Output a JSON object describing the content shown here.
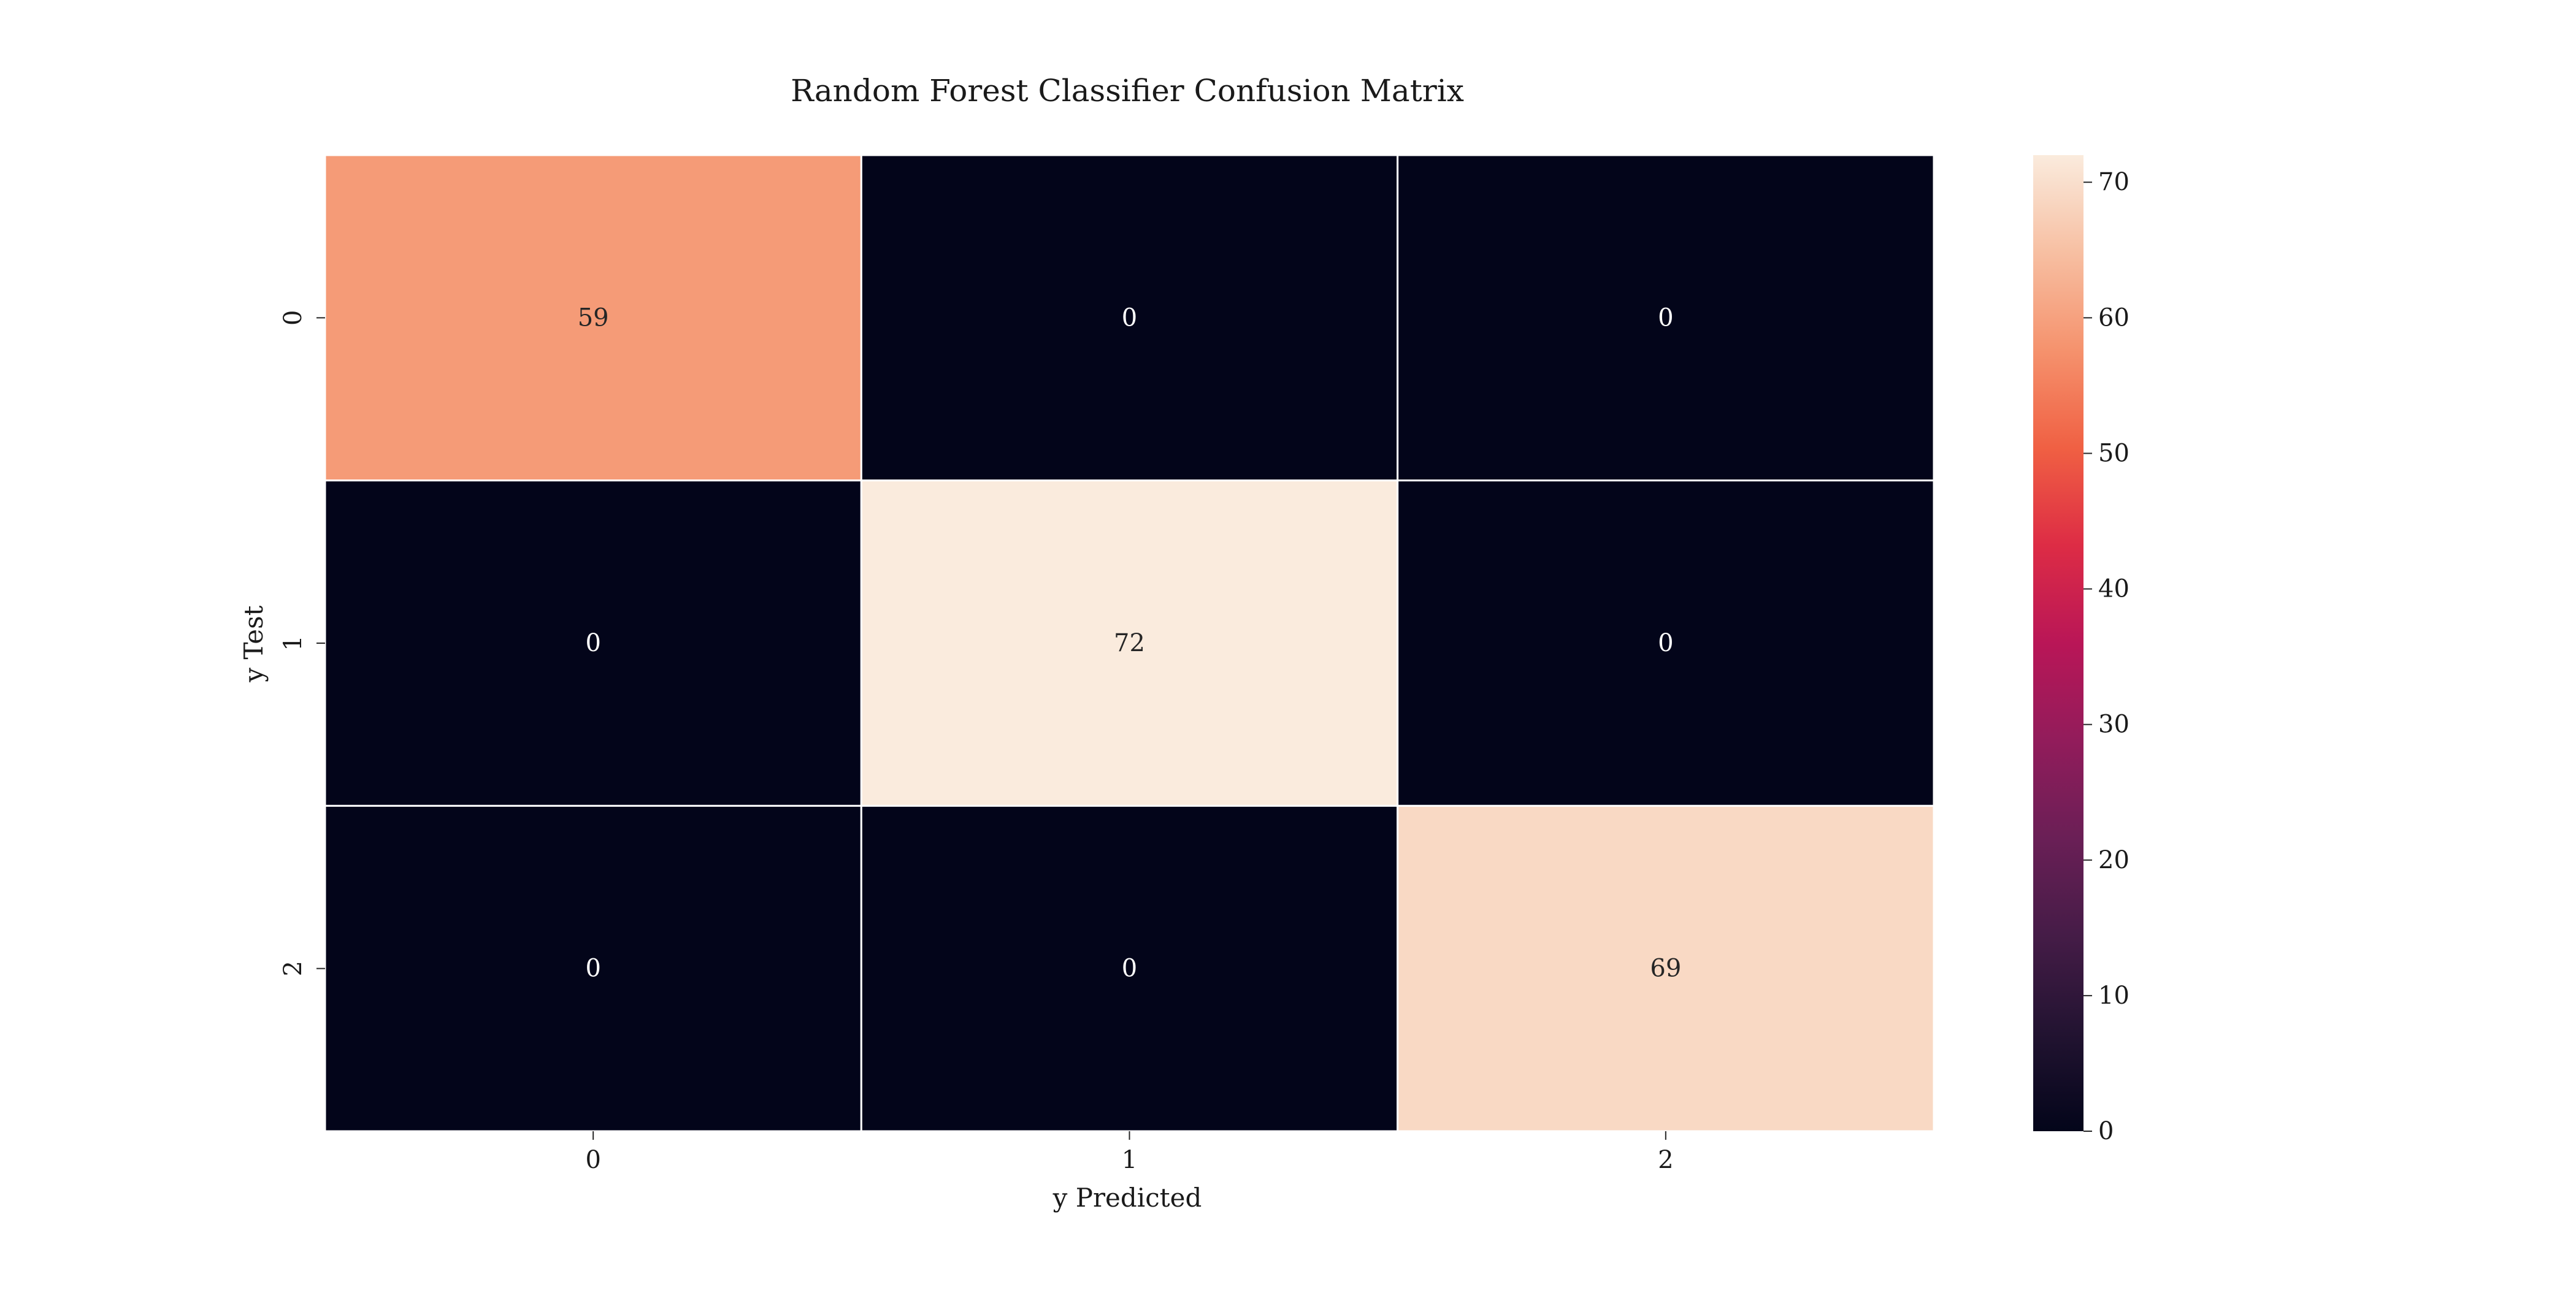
{
  "chart_data": {
    "type": "heatmap",
    "title": "Random Forest Classifier Confusion Matrix",
    "xlabel": "y Predicted",
    "ylabel": "y Test",
    "x_categories": [
      "0",
      "1",
      "2"
    ],
    "y_categories": [
      "0",
      "1",
      "2"
    ],
    "values": [
      [
        59,
        0,
        0
      ],
      [
        0,
        72,
        0
      ],
      [
        0,
        0,
        69
      ]
    ],
    "colorbar": {
      "min": 0,
      "max": 72,
      "ticks": [
        0,
        10,
        20,
        30,
        40,
        50,
        60,
        70
      ],
      "colormap": "rocket"
    },
    "annotations": true,
    "cell_border_color": "#ffffff",
    "text_color_dark_cells": "#ffffff",
    "text_color_light_cells": "#262626"
  }
}
